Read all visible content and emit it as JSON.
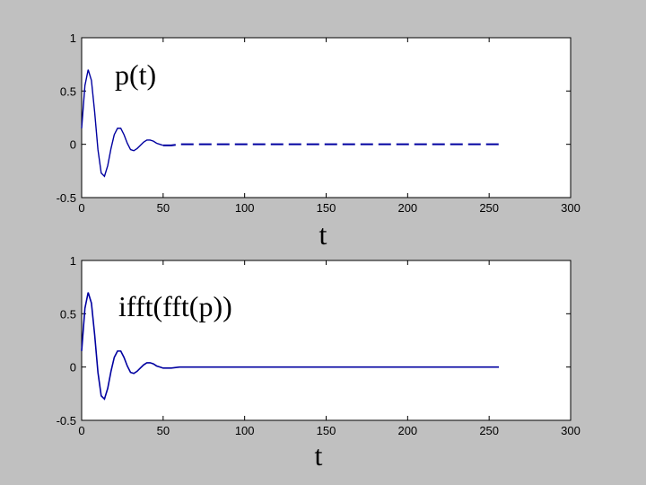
{
  "figure": {
    "background": "#c0c0c0"
  },
  "chart_data": [
    {
      "type": "line",
      "annotation": "p(t)",
      "xlabel": "t",
      "ylabel": "",
      "xlim": [
        0,
        300
      ],
      "ylim": [
        -0.5,
        1
      ],
      "xticks": [
        "0",
        "50",
        "100",
        "150",
        "200",
        "250",
        "300"
      ],
      "yticks": [
        "-0.5",
        "0",
        "0.5",
        "1"
      ],
      "grid": false,
      "series": [
        {
          "color": "#0000a0",
          "style": "dashed-tail",
          "x": [
            0,
            2,
            4,
            6,
            8,
            10,
            12,
            14,
            16,
            18,
            20,
            22,
            24,
            26,
            28,
            30,
            32,
            34,
            36,
            38,
            40,
            42,
            44,
            46,
            48,
            50,
            55,
            60,
            80,
            100,
            150,
            200,
            256
          ],
          "y": [
            0.15,
            0.55,
            0.7,
            0.6,
            0.3,
            -0.05,
            -0.27,
            -0.3,
            -0.2,
            -0.04,
            0.09,
            0.15,
            0.15,
            0.09,
            0.01,
            -0.05,
            -0.06,
            -0.04,
            -0.01,
            0.02,
            0.04,
            0.04,
            0.03,
            0.01,
            0.0,
            -0.01,
            -0.01,
            0.0,
            0,
            0,
            0,
            0,
            0
          ]
        }
      ]
    },
    {
      "type": "line",
      "annotation": "ifft(fft(p))",
      "xlabel": "t",
      "ylabel": "",
      "xlim": [
        0,
        300
      ],
      "ylim": [
        -0.5,
        1
      ],
      "xticks": [
        "0",
        "50",
        "100",
        "150",
        "200",
        "250",
        "300"
      ],
      "yticks": [
        "-0.5",
        "0",
        "0.5",
        "1"
      ],
      "grid": false,
      "series": [
        {
          "color": "#0000a0",
          "style": "solid",
          "x": [
            0,
            2,
            4,
            6,
            8,
            10,
            12,
            14,
            16,
            18,
            20,
            22,
            24,
            26,
            28,
            30,
            32,
            34,
            36,
            38,
            40,
            42,
            44,
            46,
            48,
            50,
            55,
            60,
            80,
            100,
            150,
            200,
            256
          ],
          "y": [
            0.15,
            0.55,
            0.7,
            0.6,
            0.3,
            -0.05,
            -0.27,
            -0.3,
            -0.2,
            -0.04,
            0.09,
            0.15,
            0.15,
            0.09,
            0.01,
            -0.05,
            -0.06,
            -0.04,
            -0.01,
            0.02,
            0.04,
            0.04,
            0.03,
            0.01,
            0.0,
            -0.01,
            -0.01,
            0.0,
            0,
            0,
            0,
            0,
            0
          ]
        }
      ]
    }
  ]
}
